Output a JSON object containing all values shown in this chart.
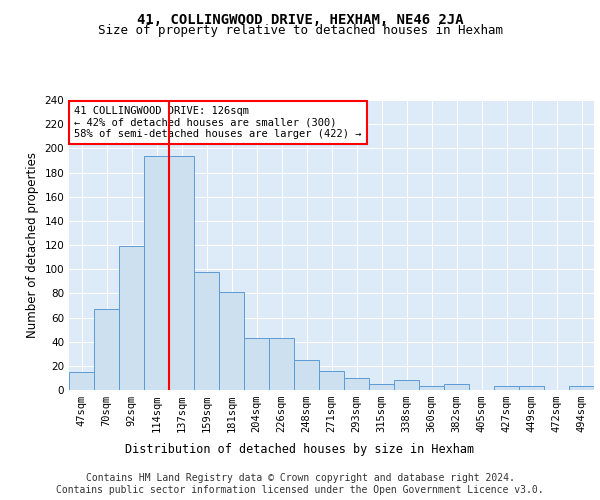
{
  "title": "41, COLLINGWOOD DRIVE, HEXHAM, NE46 2JA",
  "subtitle": "Size of property relative to detached houses in Hexham",
  "xlabel": "Distribution of detached houses by size in Hexham",
  "ylabel": "Number of detached properties",
  "bin_labels": [
    "47sqm",
    "70sqm",
    "92sqm",
    "114sqm",
    "137sqm",
    "159sqm",
    "181sqm",
    "204sqm",
    "226sqm",
    "248sqm",
    "271sqm",
    "293sqm",
    "315sqm",
    "338sqm",
    "360sqm",
    "382sqm",
    "405sqm",
    "427sqm",
    "449sqm",
    "472sqm",
    "494sqm"
  ],
  "bar_heights": [
    15,
    67,
    119,
    194,
    194,
    98,
    81,
    43,
    43,
    25,
    16,
    10,
    5,
    8,
    3,
    5,
    0,
    3,
    3,
    0,
    3
  ],
  "bar_color": "#cce0f0",
  "bar_edge_color": "#5b9bd5",
  "red_line_x": 3.5,
  "annotation_text": "41 COLLINGWOOD DRIVE: 126sqm\n← 42% of detached houses are smaller (300)\n58% of semi-detached houses are larger (422) →",
  "annotation_box_color": "white",
  "annotation_box_edge": "red",
  "ylim": [
    0,
    240
  ],
  "yticks": [
    0,
    20,
    40,
    60,
    80,
    100,
    120,
    140,
    160,
    180,
    200,
    220,
    240
  ],
  "footer_text": "Contains HM Land Registry data © Crown copyright and database right 2024.\nContains public sector information licensed under the Open Government Licence v3.0.",
  "background_color": "#ddeaf7",
  "grid_color": "white",
  "title_fontsize": 10,
  "subtitle_fontsize": 9,
  "axis_label_fontsize": 8.5,
  "tick_fontsize": 7.5,
  "footer_fontsize": 7,
  "annotation_fontsize": 7.5
}
